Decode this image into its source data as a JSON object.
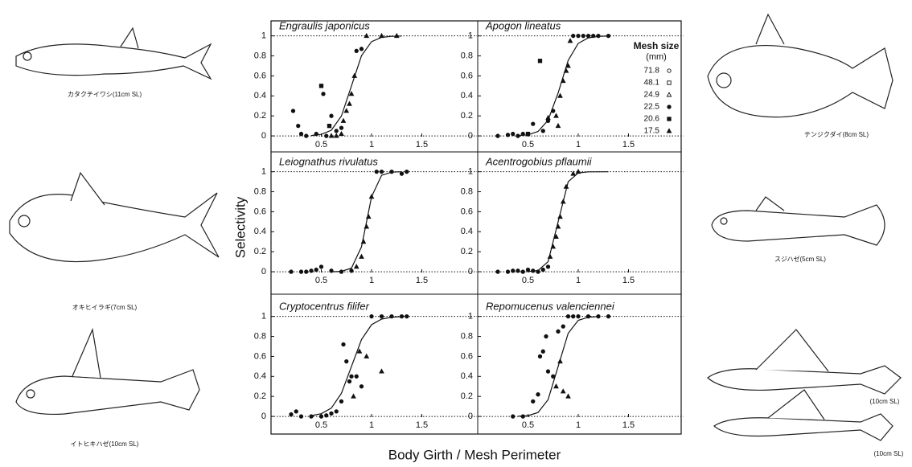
{
  "figure": {
    "y_label": "Selectivity",
    "x_label": "Body Girth / Mesh Perimeter",
    "legend_title": "Mesh size",
    "legend_unit": "(mm)",
    "legend_panel": 1,
    "mesh_sizes": [
      {
        "label": "71.8",
        "marker": "open-circle"
      },
      {
        "label": "48.1",
        "marker": "open-square"
      },
      {
        "label": "24.9",
        "marker": "open-triangle"
      },
      {
        "label": "22.5",
        "marker": "filled-circle"
      },
      {
        "label": "20.6",
        "marker": "filled-square"
      },
      {
        "label": "17.5",
        "marker": "filled-triangle"
      }
    ]
  },
  "fish": [
    {
      "caption": "カタクチイワシ(11cm SL)"
    },
    {
      "caption": "オキヒイラギ(7cm SL)"
    },
    {
      "caption": "イトヒキハゼ(10cm SL)"
    },
    {
      "caption": "テンジクダイ(8cm SL)"
    },
    {
      "caption": "スジハゼ(5cm SL)"
    },
    {
      "caption": "(10cm SL)"
    },
    {
      "caption": "(10cm SL)"
    }
  ],
  "chart_data": [
    {
      "type": "scatter",
      "title": "Engraulis japonicus",
      "xlim": [
        0,
        2
      ],
      "ylim": [
        -0.12,
        1.15
      ],
      "xticks": [
        0.5,
        1,
        1.5
      ],
      "yticks": [
        0,
        0.2,
        0.4,
        0.6,
        0.8,
        1
      ],
      "hlines": [
        0,
        1
      ],
      "series": [
        {
          "marker": "filled-circle",
          "x": [
            0.22,
            0.27,
            0.3,
            0.35,
            0.45,
            0.5,
            0.52,
            0.6,
            0.65,
            0.7,
            0.55,
            0.9,
            0.85
          ],
          "values": [
            0.25,
            0.1,
            0.02,
            0,
            0.02,
            0.5,
            0.42,
            0.2,
            0.05,
            0.08,
            0,
            0.87,
            0.85
          ]
        },
        {
          "marker": "filled-square",
          "x": [
            0.5,
            0.58
          ],
          "values": [
            0.5,
            0.1
          ]
        },
        {
          "marker": "filled-triangle",
          "x": [
            0.6,
            0.7,
            0.72,
            0.75,
            0.78,
            0.8,
            0.83,
            0.95,
            1.1,
            1.25,
            0.65
          ],
          "values": [
            0,
            0.02,
            0.15,
            0.25,
            0.32,
            0.42,
            0.6,
            1,
            1,
            1,
            0
          ]
        }
      ],
      "fit": {
        "x": [
          0.4,
          0.5,
          0.6,
          0.7,
          0.8,
          0.9,
          1.0,
          1.1,
          1.2,
          1.3
        ],
        "values": [
          0.004,
          0.015,
          0.057,
          0.198,
          0.5,
          0.802,
          0.943,
          0.985,
          0.996,
          0.999
        ]
      }
    },
    {
      "type": "scatter",
      "title": "Apogon lineatus",
      "xlim": [
        0,
        2
      ],
      "ylim": [
        -0.12,
        1.15
      ],
      "xticks": [
        0.5,
        1,
        1.5
      ],
      "yticks": [
        0,
        0.2,
        0.4,
        0.6,
        0.8,
        1
      ],
      "hlines": [
        0,
        1
      ],
      "series": [
        {
          "marker": "filled-circle",
          "x": [
            0.2,
            0.3,
            0.35,
            0.4,
            0.45,
            0.55,
            0.65,
            0.7,
            0.75,
            0.95,
            1.0,
            1.05,
            1.1,
            1.15,
            1.2,
            1.3
          ],
          "values": [
            0,
            0.01,
            0.02,
            0,
            0.02,
            0.12,
            0.05,
            0.15,
            0.25,
            1,
            1,
            1,
            1,
            1,
            1,
            1
          ]
        },
        {
          "marker": "filled-square",
          "x": [
            0.62,
            0.5
          ],
          "values": [
            0.75,
            0.02
          ]
        },
        {
          "marker": "filled-triangle",
          "x": [
            0.78,
            0.82,
            0.85,
            0.88,
            0.9,
            0.92,
            0.8,
            0.7
          ],
          "values": [
            0.2,
            0.4,
            0.55,
            0.65,
            0.7,
            0.95,
            0.1,
            0.18
          ]
        }
      ],
      "fit": {
        "x": [
          0.4,
          0.5,
          0.6,
          0.7,
          0.8,
          0.9,
          1.0,
          1.1,
          1.2,
          1.3
        ],
        "values": [
          0.003,
          0.011,
          0.044,
          0.157,
          0.43,
          0.755,
          0.926,
          0.98,
          0.995,
          0.999
        ]
      }
    },
    {
      "type": "scatter",
      "title": "Leiognathus rivulatus",
      "xlim": [
        0,
        2
      ],
      "ylim": [
        -0.12,
        1.15
      ],
      "xticks": [
        0.5,
        1,
        1.5
      ],
      "yticks": [
        0,
        0.2,
        0.4,
        0.6,
        0.8,
        1
      ],
      "hlines": [
        0,
        1
      ],
      "series": [
        {
          "marker": "filled-circle",
          "x": [
            0.2,
            0.3,
            0.35,
            0.4,
            0.45,
            0.5,
            0.6,
            0.7,
            0.8,
            1.05,
            1.1,
            1.2,
            1.3,
            1.35
          ],
          "values": [
            0,
            0,
            0,
            0.01,
            0.02,
            0.05,
            0.01,
            0,
            0.01,
            1,
            1,
            1,
            0.98,
            1
          ]
        },
        {
          "marker": "filled-triangle",
          "x": [
            0.85,
            0.9,
            0.92,
            0.95,
            0.97,
            1.0
          ],
          "values": [
            0.05,
            0.15,
            0.3,
            0.45,
            0.55,
            0.75
          ]
        }
      ],
      "fit": {
        "x": [
          0.6,
          0.7,
          0.8,
          0.9,
          0.95,
          1.0,
          1.1,
          1.2,
          1.3
        ],
        "values": [
          0,
          0.004,
          0.036,
          0.25,
          0.5,
          0.75,
          0.964,
          0.996,
          1
        ]
      }
    },
    {
      "type": "scatter",
      "title": "Acentrogobius pflaumii",
      "xlim": [
        0,
        2
      ],
      "ylim": [
        -0.12,
        1.15
      ],
      "xticks": [
        0.5,
        1,
        1.5
      ],
      "yticks": [
        0,
        0.2,
        0.4,
        0.6,
        0.8,
        1
      ],
      "hlines": [
        0,
        1
      ],
      "series": [
        {
          "marker": "filled-circle",
          "x": [
            0.2,
            0.3,
            0.4,
            0.45,
            0.5,
            0.55,
            0.6,
            0.65,
            0.7,
            0.35
          ],
          "values": [
            0,
            0,
            0.01,
            0,
            0.02,
            0.01,
            0,
            0.02,
            0.05,
            0.01
          ]
        },
        {
          "marker": "filled-triangle",
          "x": [
            0.72,
            0.75,
            0.78,
            0.8,
            0.82,
            0.85,
            0.88,
            0.95,
            1.0
          ],
          "values": [
            0.15,
            0.25,
            0.35,
            0.45,
            0.55,
            0.7,
            0.85,
            0.98,
            1
          ]
        }
      ],
      "fit": {
        "x": [
          0.5,
          0.6,
          0.7,
          0.8,
          0.9,
          1.0,
          1.1,
          1.3
        ],
        "values": [
          0.001,
          0.012,
          0.1,
          0.5,
          0.9,
          0.988,
          0.999,
          1
        ]
      }
    },
    {
      "type": "scatter",
      "title": "Cryptocentrus filifer",
      "xlim": [
        0,
        2
      ],
      "ylim": [
        -0.12,
        1.15
      ],
      "xticks": [
        0.5,
        1,
        1.5
      ],
      "yticks": [
        0,
        0.2,
        0.4,
        0.6,
        0.8,
        1
      ],
      "hlines": [
        0,
        1
      ],
      "series": [
        {
          "marker": "filled-circle",
          "x": [
            0.2,
            0.25,
            0.3,
            0.4,
            0.5,
            0.6,
            0.65,
            0.7,
            0.72,
            0.75,
            0.78,
            0.8,
            0.85,
            0.9,
            1.0,
            1.1,
            1.2,
            1.3,
            1.35,
            0.55
          ],
          "values": [
            0.02,
            0.05,
            0,
            0,
            0,
            0.03,
            0.05,
            0.15,
            0.72,
            0.55,
            0.35,
            0.4,
            0.4,
            0.3,
            1,
            1,
            1,
            1,
            1,
            0.01
          ]
        },
        {
          "marker": "filled-triangle",
          "x": [
            0.82,
            0.88,
            0.95,
            1.1
          ],
          "values": [
            0.2,
            0.65,
            0.6,
            0.45
          ]
        }
      ],
      "fit": {
        "x": [
          0.4,
          0.5,
          0.6,
          0.7,
          0.8,
          0.9,
          1.0,
          1.1,
          1.2,
          1.3
        ],
        "values": [
          0.008,
          0.027,
          0.083,
          0.231,
          0.5,
          0.769,
          0.917,
          0.973,
          0.992,
          0.998
        ]
      }
    },
    {
      "type": "scatter",
      "title": "Repomucenus valenciennei",
      "xlim": [
        0,
        2
      ],
      "ylim": [
        -0.12,
        1.15
      ],
      "xticks": [
        0.5,
        1,
        1.5
      ],
      "yticks": [
        0,
        0.2,
        0.4,
        0.6,
        0.8,
        1
      ],
      "hlines": [
        0,
        1
      ],
      "series": [
        {
          "marker": "filled-circle",
          "x": [
            0.35,
            0.45,
            0.55,
            0.6,
            0.62,
            0.65,
            0.68,
            0.7,
            0.75,
            0.8,
            0.85,
            0.9,
            0.95,
            1.0,
            1.1,
            1.2,
            1.3
          ],
          "values": [
            0,
            0,
            0.15,
            0.22,
            0.6,
            0.65,
            0.8,
            0.45,
            0.4,
            0.85,
            0.9,
            1,
            1,
            1,
            1,
            1,
            1
          ]
        },
        {
          "marker": "filled-triangle",
          "x": [
            0.78,
            0.82,
            0.85,
            0.9
          ],
          "values": [
            0.3,
            0.55,
            0.25,
            0.2
          ]
        }
      ],
      "fit": {
        "x": [
          0.4,
          0.5,
          0.6,
          0.7,
          0.8,
          0.9,
          1.0,
          1.1,
          1.2
        ],
        "values": [
          0.002,
          0.008,
          0.039,
          0.168,
          0.5,
          0.832,
          0.961,
          0.992,
          0.998
        ]
      }
    }
  ]
}
